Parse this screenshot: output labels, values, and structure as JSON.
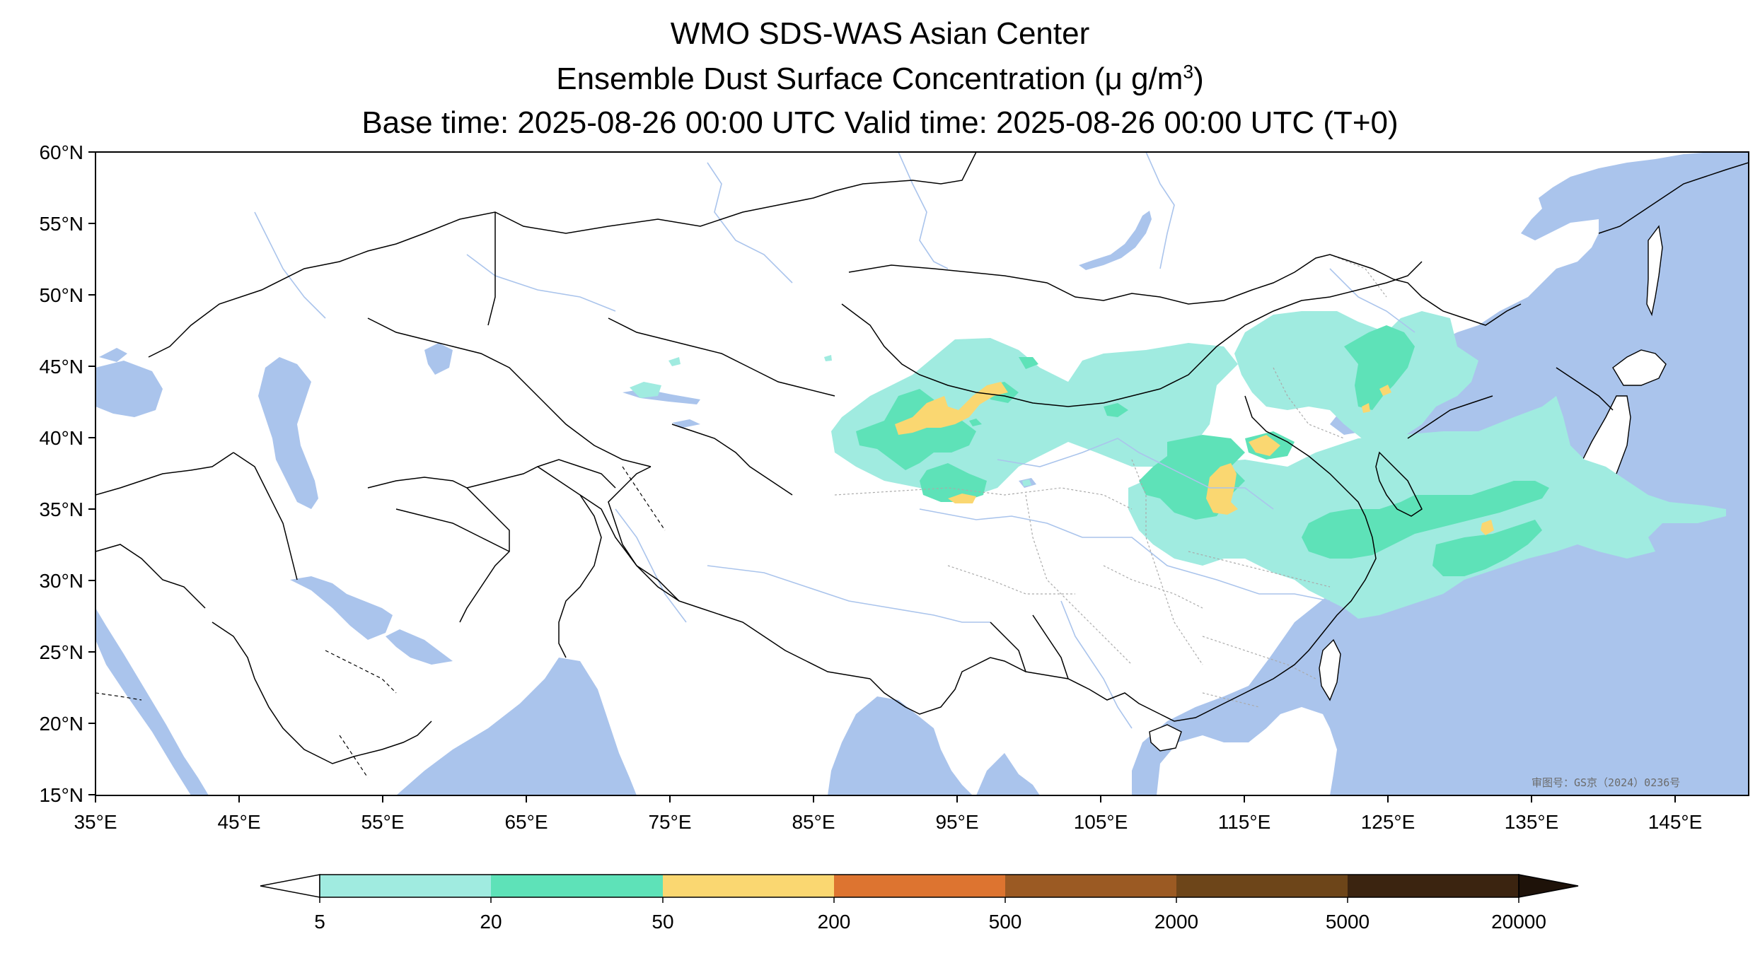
{
  "titles": {
    "line1": "WMO SDS-WAS Asian Center",
    "line2_prefix": "Ensemble Dust Surface Concentration (",
    "line2_unit": "μ g/m",
    "line2_sup": "3",
    "line2_suffix": ")",
    "line3": "Base time: 2025-08-26 00:00 UTC Valid time: 2025-08-26 00:00 UTC (T+0)"
  },
  "map": {
    "extent_lon": [
      35,
      150
    ],
    "extent_lat": [
      15,
      60
    ],
    "ocean_color": "#aac4ec",
    "land_color": "#ffffff",
    "lat_labels": [
      "60°N",
      "55°N",
      "50°N",
      "45°N",
      "40°N",
      "35°N",
      "30°N",
      "25°N",
      "20°N",
      "15°N"
    ],
    "lon_labels": [
      "35°E",
      "45°E",
      "55°E",
      "65°E",
      "75°E",
      "85°E",
      "95°E",
      "105°E",
      "115°E",
      "125°E",
      "135°E",
      "145°E"
    ],
    "watermark": "审图号：GS京（2024）0236号"
  },
  "colorbar": {
    "levels": [
      "5",
      "20",
      "50",
      "200",
      "500",
      "2000",
      "5000",
      "20000"
    ],
    "colors": [
      "#a0ebe0",
      "#5ee2b8",
      "#fad771",
      "#dd7430",
      "#9b5a23",
      "#6d4519",
      "#3b2410"
    ],
    "under_color": "#ffffff",
    "over_color": "#1e1209"
  }
}
